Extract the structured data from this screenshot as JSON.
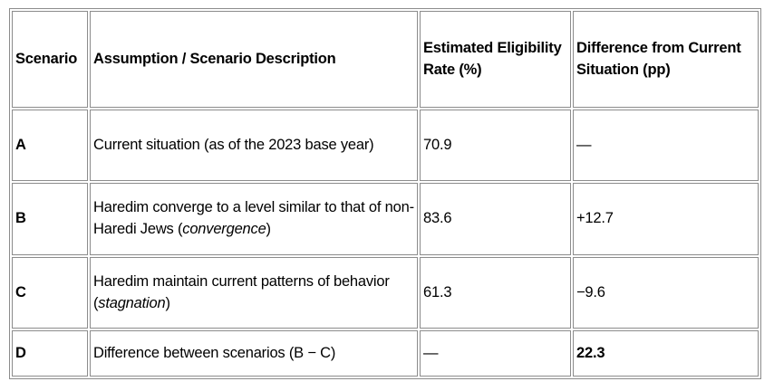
{
  "table": {
    "header": [
      "Scenario",
      "Assumption / Scenario Description",
      "Estimated Eligibility Rate (%)",
      "Difference from Current Situation (pp)"
    ],
    "rows": [
      [
        "A",
        [
          "Current situation (as of the 2023 base year)"
        ],
        "70.9",
        "—"
      ],
      [
        "B",
        [
          "Haredim converge to a level similar to that of non-Haredi Jews (",
          "convergence",
          ")"
        ],
        "83.6",
        "+12.7"
      ],
      [
        "C",
        [
          "Haredim maintain current patterns of behavior (",
          "stagnation",
          ")"
        ],
        "61.3",
        "−9.6"
      ],
      [
        "D",
        [
          "Difference between scenarios (B − C)"
        ],
        "—",
        "22.3"
      ]
    ]
  }
}
